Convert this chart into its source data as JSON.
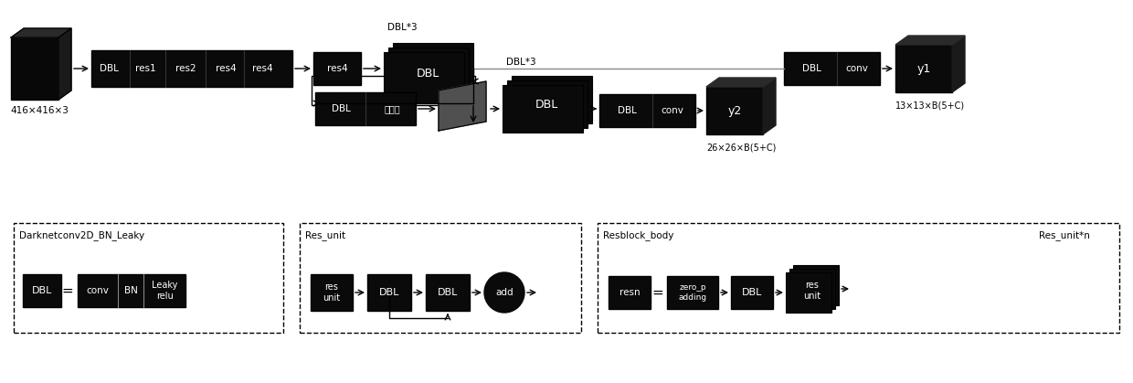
{
  "bg_color": "#ffffff",
  "black": "#0a0a0a",
  "top_section": {
    "input_label": "416×416×3",
    "backbone_labels": [
      "DBL",
      "res1",
      "res2",
      "res4",
      "res4"
    ],
    "res4_label": "res4",
    "dbl3_top_label": "DBL*3",
    "dbl3_top_inner": "DBL",
    "y1_label": "y1",
    "y1_sublabel": "13×13×B(5+C)",
    "dbl_upsample": [
      "DBL",
      "上采样"
    ],
    "dbl3_bot_label": "DBL*3",
    "dbl3_bot_inner": "DBL",
    "y2_label": "y2",
    "y2_sublabel": "26×26×B(5+C)"
  },
  "legend1": {
    "title": "Darknetconv2D_BN_Leaky",
    "lhs": "DBL",
    "rhs": [
      "conv",
      "BN",
      "Leaky\nrelu"
    ]
  },
  "legend2": {
    "title": "Res_unit",
    "lhs": "res\nunit",
    "rhs": [
      "DBL",
      "DBL",
      "add"
    ]
  },
  "legend3": {
    "title": "Resblock_body",
    "subtitle": "Res_unit*n",
    "lhs": "resn",
    "rhs": [
      "zero_p\nadding",
      "DBL",
      "res\nunit"
    ]
  }
}
